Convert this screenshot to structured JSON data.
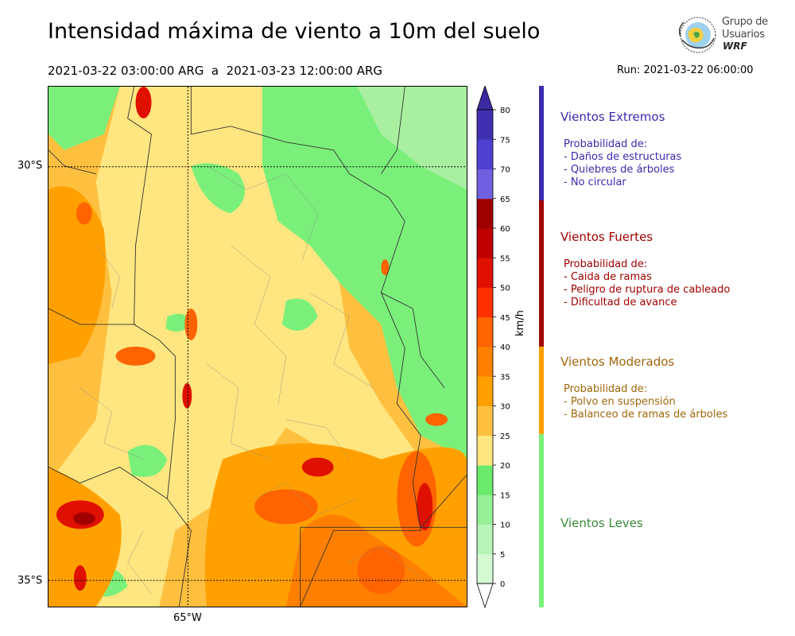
{
  "header": {
    "title": "Intensidad máxima de viento a 10m del suelo",
    "period": "2021-03-22 03:00:00 ARG  a  2021-03-23 12:00:00 ARG",
    "run": "Run: 2021-03-22 06:00:00"
  },
  "logo": {
    "line1": "Grupo de",
    "line2": "Usuarios",
    "line3": "WRF",
    "icon": "globe-icon"
  },
  "map": {
    "lat_labels": [
      "30°S",
      "35°S"
    ],
    "lon_labels": [
      "65°W"
    ],
    "dominant_colors": [
      "#ffe680",
      "#ffc040",
      "#ffa000",
      "#ff6400",
      "#7af07a",
      "#5ac85a"
    ]
  },
  "colorbar": {
    "unit": "km/h",
    "levels": [
      0,
      5,
      10,
      15,
      20,
      25,
      30,
      35,
      40,
      45,
      50,
      55,
      60,
      65,
      70,
      75,
      80
    ],
    "colors": [
      "#e8fde8",
      "#d4fad4",
      "#b8f5b8",
      "#96f096",
      "#6cea6c",
      "#ffe680",
      "#ffc040",
      "#ffa000",
      "#ff8000",
      "#ff6400",
      "#ff3000",
      "#e01000",
      "#c00000",
      "#a00000",
      "#7060e0",
      "#5040d0",
      "#4030b0"
    ],
    "extend_colors": {
      "low": "#ffffff",
      "high": "#3c2aa0"
    }
  },
  "legend": {
    "categories": [
      {
        "title": "Vientos Extremos",
        "color": "#3a2aad",
        "lines": [
          "Probabilidad de:",
          "- Daños de estructuras",
          "- Quiebres de árboles",
          "- No circular"
        ]
      },
      {
        "title": "Vientos Fuertes",
        "color": "#a00000",
        "lines": [
          "Probabilidad de:",
          "- Caida de ramas",
          "- Peligro de ruptura de cableado",
          "- Dificultad de avance"
        ]
      },
      {
        "title": "Vientos Moderados",
        "color": "#a0660a",
        "bar_color": "#ffa000",
        "lines": [
          "Probabilidad de:",
          "- Polvo en suspensión",
          "- Balanceo de ramas de árboles"
        ]
      },
      {
        "title": "Vientos Leves",
        "color": "#3a8a3a",
        "bar_color": "#7af07a",
        "lines": []
      }
    ]
  }
}
